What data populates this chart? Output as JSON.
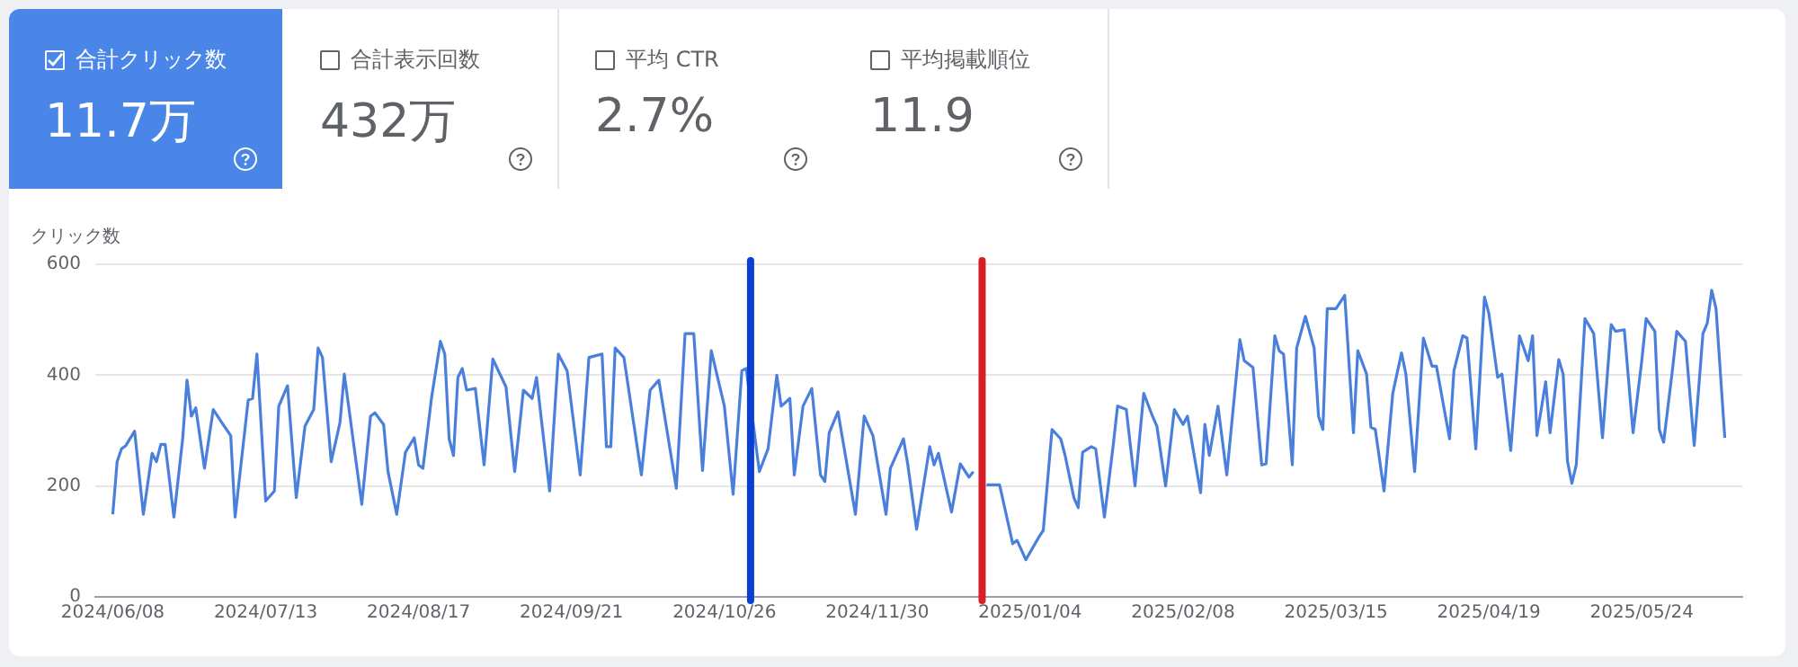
{
  "chart_data": [
    {
      "type": "other",
      "title": "合計クリック数",
      "annotations": [
        "11.7万"
      ]
    },
    {
      "type": "other",
      "title": "合計表示回数",
      "annotations": [
        "432万"
      ]
    },
    {
      "type": "other",
      "title": "平均 CTR",
      "annotations": [
        "2.7%"
      ]
    },
    {
      "type": "other",
      "title": "平均掲載順位",
      "annotations": [
        "11.9"
      ]
    },
    {
      "type": "line",
      "ylabel": "クリック数",
      "legend": false,
      "grid": "y",
      "marker": "none",
      "line_style": "solid",
      "ylim": [
        0,
        600
      ],
      "yticks": [
        0,
        200,
        400,
        600
      ],
      "xlim": [
        "2024-06-04",
        "2025-06-16"
      ],
      "xticks": [
        {
          "value": "2024-06-08",
          "label": "2024/06/08"
        },
        {
          "value": "2024-07-13",
          "label": "2024/07/13"
        },
        {
          "value": "2024-08-17",
          "label": "2024/08/17"
        },
        {
          "value": "2024-09-21",
          "label": "2024/09/21"
        },
        {
          "value": "2024-10-26",
          "label": "2024/10/26"
        },
        {
          "value": "2024-11-30",
          "label": "2024/11/30"
        },
        {
          "value": "2025-01-04",
          "label": "2025/01/04"
        },
        {
          "value": "2025-02-08",
          "label": "2025/02/08"
        },
        {
          "value": "2025-03-15",
          "label": "2025/03/15"
        },
        {
          "value": "2025-04-19",
          "label": "2025/04/19"
        },
        {
          "value": "2025-05-24",
          "label": "2025/05/24"
        }
      ],
      "ref_lines": [
        {
          "axis": "x",
          "value": "2024-11-01",
          "color": "#0b3fd4"
        },
        {
          "axis": "x",
          "value": "2024-12-24",
          "color": "#d61f26"
        }
      ],
      "series": [
        {
          "color": "#4a80dc",
          "x": [
            "2024-06-08",
            "2024-06-09",
            "2024-06-10",
            "2024-06-11",
            "2024-06-13",
            "2024-06-15",
            "2024-06-17",
            "2024-06-18",
            "2024-06-19",
            "2024-06-20",
            "2024-06-22",
            "2024-06-24",
            "2024-06-25",
            "2024-06-26",
            "2024-06-27",
            "2024-06-29",
            "2024-07-01",
            "2024-07-03",
            "2024-07-05",
            "2024-07-06",
            "2024-07-09",
            "2024-07-10",
            "2024-07-11",
            "2024-07-13",
            "2024-07-15",
            "2024-07-16",
            "2024-07-18",
            "2024-07-20",
            "2024-07-22",
            "2024-07-24",
            "2024-07-25",
            "2024-07-26",
            "2024-07-28",
            "2024-07-30",
            "2024-07-31",
            "2024-08-04",
            "2024-08-06",
            "2024-08-07",
            "2024-08-09",
            "2024-08-10",
            "2024-08-12",
            "2024-08-14",
            "2024-08-16",
            "2024-08-17",
            "2024-08-18",
            "2024-08-20",
            "2024-08-22",
            "2024-08-23",
            "2024-08-24",
            "2024-08-25",
            "2024-08-26",
            "2024-08-27",
            "2024-08-28",
            "2024-08-30",
            "2024-09-01",
            "2024-09-03",
            "2024-09-06",
            "2024-09-08",
            "2024-09-10",
            "2024-09-12",
            "2024-09-13",
            "2024-09-16",
            "2024-09-18",
            "2024-09-20",
            "2024-09-23",
            "2024-09-25",
            "2024-09-28",
            "2024-09-29",
            "2024-09-30",
            "2024-10-01",
            "2024-10-03",
            "2024-10-07",
            "2024-10-09",
            "2024-10-11",
            "2024-10-15",
            "2024-10-17",
            "2024-10-19",
            "2024-10-21",
            "2024-10-23",
            "2024-10-26",
            "2024-10-28",
            "2024-10-30",
            "2024-10-31",
            "2024-11-03",
            "2024-11-05",
            "2024-11-07",
            "2024-11-08",
            "2024-11-10",
            "2024-11-11",
            "2024-11-13",
            "2024-11-15",
            "2024-11-17",
            "2024-11-18",
            "2024-11-19",
            "2024-11-21",
            "2024-11-25",
            "2024-11-27",
            "2024-11-29",
            "2024-12-02",
            "2024-12-03",
            "2024-12-06",
            "2024-12-07",
            "2024-12-09",
            "2024-12-12",
            "2024-12-13",
            "2024-12-14",
            "2024-12-17",
            "2024-12-19",
            "2024-12-21",
            "2024-12-22",
            "2024-12-24",
            "2024-12-25",
            "2024-12-28",
            "2024-12-31",
            "2025-01-01",
            "2025-01-03",
            "2025-01-06",
            "2025-01-07",
            "2025-01-09",
            "2025-01-11",
            "2025-01-12",
            "2025-01-14",
            "2025-01-15",
            "2025-01-16",
            "2025-01-18",
            "2025-01-19",
            "2025-01-21",
            "2025-01-23",
            "2025-01-24",
            "2025-01-26",
            "2025-01-28",
            "2025-01-30",
            "2025-02-01",
            "2025-02-02",
            "2025-02-04",
            "2025-02-06",
            "2025-02-08",
            "2025-02-09",
            "2025-02-12",
            "2025-02-13",
            "2025-02-14",
            "2025-02-16",
            "2025-02-18",
            "2025-02-21",
            "2025-02-22",
            "2025-02-24",
            "2025-02-26",
            "2025-02-27",
            "2025-03-01",
            "2025-03-02",
            "2025-03-03",
            "2025-03-05",
            "2025-03-06",
            "2025-03-08",
            "2025-03-10",
            "2025-03-11",
            "2025-03-12",
            "2025-03-13",
            "2025-03-15",
            "2025-03-17",
            "2025-03-19",
            "2025-03-20",
            "2025-03-22",
            "2025-03-23",
            "2025-03-24",
            "2025-03-26",
            "2025-03-28",
            "2025-03-30",
            "2025-03-31",
            "2025-04-02",
            "2025-04-04",
            "2025-04-06",
            "2025-04-07",
            "2025-04-10",
            "2025-04-11",
            "2025-04-13",
            "2025-04-14",
            "2025-04-16",
            "2025-04-18",
            "2025-04-19",
            "2025-04-21",
            "2025-04-22",
            "2025-04-24",
            "2025-04-26",
            "2025-04-28",
            "2025-04-29",
            "2025-04-30",
            "2025-05-02",
            "2025-05-03",
            "2025-05-05",
            "2025-05-06",
            "2025-05-07",
            "2025-05-08",
            "2025-05-09",
            "2025-05-11",
            "2025-05-13",
            "2025-05-15",
            "2025-05-17",
            "2025-05-18",
            "2025-05-20",
            "2025-05-22",
            "2025-05-24",
            "2025-05-25",
            "2025-05-27",
            "2025-05-28",
            "2025-05-29",
            "2025-05-31",
            "2025-06-01",
            "2025-06-03",
            "2025-06-05",
            "2025-06-07",
            "2025-06-08",
            "2025-06-09",
            "2025-06-10",
            "2025-06-12"
          ],
          "values": [
            149,
            244,
            267,
            273,
            299,
            149,
            259,
            244,
            275,
            275,
            144,
            285,
            391,
            326,
            341,
            232,
            338,
            314,
            291,
            144,
            355,
            358,
            438,
            173,
            191,
            344,
            381,
            179,
            308,
            338,
            449,
            432,
            244,
            314,
            402,
            167,
            326,
            332,
            311,
            226,
            149,
            261,
            287,
            238,
            232,
            361,
            461,
            438,
            285,
            255,
            396,
            412,
            373,
            376,
            238,
            429,
            379,
            226,
            373,
            358,
            396,
            191,
            438,
            408,
            220,
            432,
            438,
            271,
            271,
            449,
            432,
            220,
            373,
            391,
            196,
            475,
            475,
            228,
            444,
            344,
            185,
            408,
            412,
            226,
            267,
            400,
            344,
            358,
            220,
            344,
            376,
            220,
            208,
            296,
            334,
            149,
            326,
            291,
            149,
            232,
            285,
            238,
            122,
            271,
            238,
            259,
            153,
            240,
            216,
            226,
            null,
            202,
            202,
            96,
            102,
            67,
            108,
            120,
            302,
            285,
            255,
            179,
            161,
            261,
            271,
            267,
            144,
            273,
            344,
            338,
            200,
            367,
            326,
            308,
            200,
            338,
            311,
            326,
            188,
            311,
            255,
            344,
            220,
            464,
            426,
            414,
            238,
            240,
            471,
            444,
            438,
            238,
            449,
            506,
            449,
            326,
            302,
            520,
            520,
            544,
            296,
            444,
            402,
            306,
            302,
            191,
            367,
            440,
            402,
            226,
            467,
            416,
            416,
            285,
            408,
            471,
            467,
            267,
            541,
            511,
            396,
            402,
            264,
            471,
            426,
            471,
            291,
            388,
            296,
            428,
            402,
            244,
            205,
            238,
            502,
            475,
            287,
            491,
            479,
            482,
            296,
            426,
            502,
            479,
            302,
            279,
            408,
            479,
            461,
            273,
            475,
            494,
            553,
            520,
            287
          ]
        }
      ]
    }
  ]
}
